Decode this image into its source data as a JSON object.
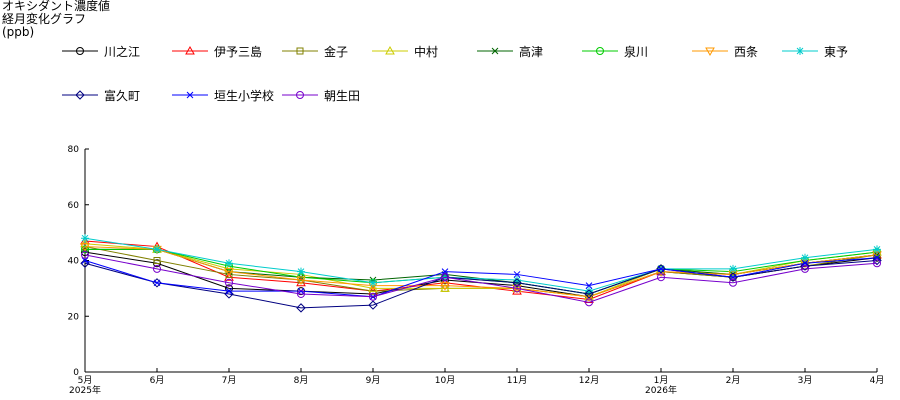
{
  "header": {
    "title": "オキシダント濃度値",
    "subtitle": "経月変化グラフ",
    "unit": "(ppb)"
  },
  "chart_data": {
    "type": "line",
    "title": "オキシダント濃度値 経月変化グラフ",
    "ylabel": "(ppb)",
    "xlabel": "",
    "ylim": [
      0,
      80
    ],
    "yticks": [
      0,
      20,
      40,
      60,
      80
    ],
    "grid": false,
    "legend_position": "top",
    "categories": [
      "5月",
      "6月",
      "7月",
      "8月",
      "9月",
      "10月",
      "11月",
      "12月",
      "1月",
      "2月",
      "3月",
      "4月"
    ],
    "year_labels": [
      {
        "index": 0,
        "label": "2025年"
      },
      {
        "index": 8,
        "label": "2026年"
      }
    ],
    "series": [
      {
        "name": "川之江",
        "color": "#000000",
        "marker": "circle",
        "values": [
          43,
          39,
          30,
          29,
          28,
          33,
          31,
          27,
          36,
          34,
          38,
          41
        ]
      },
      {
        "name": "伊予三島",
        "color": "#ff0000",
        "marker": "triangle",
        "values": [
          47,
          45,
          34,
          32,
          29,
          32,
          29,
          26,
          36,
          35,
          39,
          42
        ]
      },
      {
        "name": "金子",
        "color": "#808000",
        "marker": "square",
        "values": [
          45,
          40,
          35,
          33,
          29,
          30,
          30,
          27,
          36,
          34,
          38,
          42
        ]
      },
      {
        "name": "中村",
        "color": "#cccc00",
        "marker": "triangle",
        "values": [
          46,
          44,
          37,
          35,
          30,
          30,
          30,
          27,
          37,
          35,
          40,
          43
        ]
      },
      {
        "name": "高津",
        "color": "#006400",
        "marker": "x",
        "values": [
          44,
          44,
          36,
          34,
          33,
          35,
          32,
          28,
          37,
          35,
          39,
          42
        ]
      },
      {
        "name": "泉川",
        "color": "#00cc00",
        "marker": "circle",
        "values": [
          44,
          44,
          38,
          34,
          32,
          34,
          32,
          28,
          37,
          36,
          40,
          43
        ]
      },
      {
        "name": "西条",
        "color": "#ff9900",
        "marker": "triangle-down",
        "values": [
          45,
          44,
          36,
          33,
          31,
          31,
          30,
          27,
          36,
          35,
          39,
          42
        ]
      },
      {
        "name": "東予",
        "color": "#00cccc",
        "marker": "star",
        "values": [
          48,
          44,
          39,
          36,
          32,
          34,
          33,
          29,
          37,
          37,
          41,
          44
        ]
      },
      {
        "name": "富久町",
        "color": "#000080",
        "marker": "diamond",
        "values": [
          39,
          32,
          28,
          23,
          24,
          34,
          32,
          28,
          37,
          34,
          38,
          40
        ]
      },
      {
        "name": "垣生小学校",
        "color": "#0000ff",
        "marker": "x",
        "values": [
          40,
          32,
          29,
          29,
          27,
          36,
          35,
          31,
          37,
          34,
          39,
          41
        ]
      },
      {
        "name": "朝生田",
        "color": "#7700cc",
        "marker": "circle",
        "values": [
          42,
          37,
          32,
          28,
          27,
          34,
          30,
          25,
          34,
          32,
          37,
          39
        ]
      }
    ]
  }
}
